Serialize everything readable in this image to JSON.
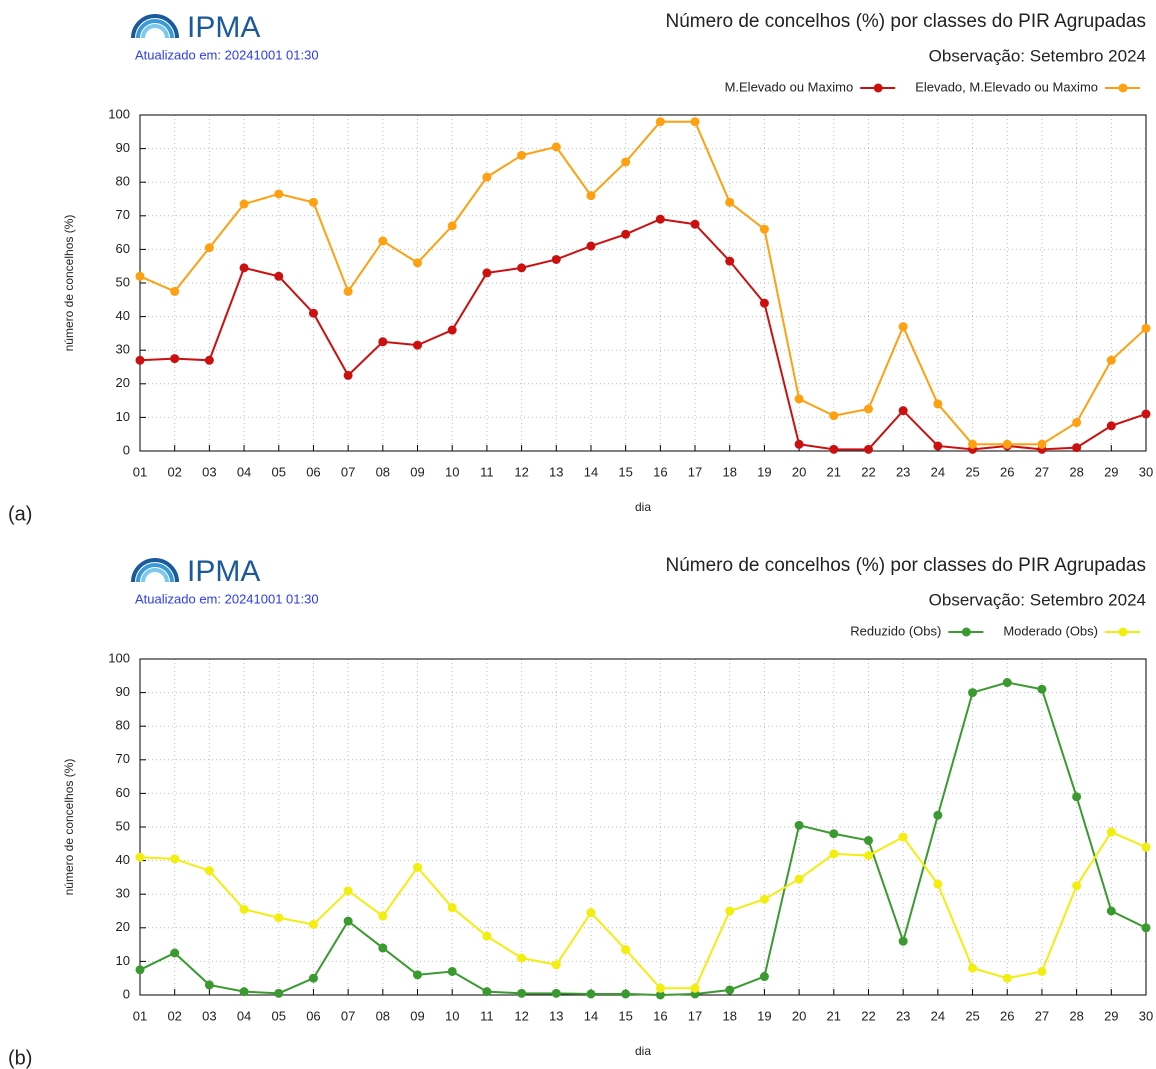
{
  "chart_data": [
    {
      "type": "line",
      "panel_label": "(a)",
      "logo": "IPMA",
      "updated": "Atualizado em: 20241001 01:30",
      "title": "Número de concelhos (%) por classes do PIR Agrupadas",
      "subtitle": "Observação: Setembro 2024",
      "xlabel": "dia",
      "ylabel": "número de concelhos (%)",
      "categories": [
        "01",
        "02",
        "03",
        "04",
        "05",
        "06",
        "07",
        "08",
        "09",
        "10",
        "11",
        "12",
        "13",
        "14",
        "15",
        "16",
        "17",
        "18",
        "19",
        "20",
        "21",
        "22",
        "23",
        "24",
        "25",
        "26",
        "27",
        "28",
        "29",
        "30"
      ],
      "ylim": [
        0,
        100
      ],
      "yticks": [
        0,
        10,
        20,
        30,
        40,
        50,
        60,
        70,
        80,
        90,
        100
      ],
      "grid": true,
      "series": [
        {
          "name": "M.Elevado ou Maximo",
          "color": "#cc1010",
          "values": [
            27,
            27.5,
            27,
            54.5,
            52,
            41,
            22.5,
            32.5,
            31.5,
            36,
            53,
            54.5,
            57,
            61,
            64.5,
            69,
            67.5,
            56.5,
            44,
            2,
            0.5,
            0.5,
            12,
            1.5,
            0.5,
            1.5,
            0.5,
            1,
            7.5,
            11
          ]
        },
        {
          "name": "Elevado, M.Elevado ou Maximo",
          "color": "#ffa010",
          "values": [
            52,
            47.5,
            60.5,
            73.5,
            76.5,
            74,
            47.5,
            62.5,
            56,
            67,
            81.5,
            88,
            90.5,
            76,
            86,
            98,
            98,
            74,
            66,
            15.5,
            10.5,
            12.5,
            37,
            14,
            2,
            2,
            2,
            8.5,
            27,
            36.5
          ]
        }
      ]
    },
    {
      "type": "line",
      "panel_label": "(b)",
      "logo": "IPMA",
      "updated": "Atualizado em: 20241001 01:30",
      "title": "Número de concelhos (%) por classes do PIR Agrupadas",
      "subtitle": "Observação: Setembro 2024",
      "xlabel": "dia",
      "ylabel": "número de concelhos (%)",
      "categories": [
        "01",
        "02",
        "03",
        "04",
        "05",
        "06",
        "07",
        "08",
        "09",
        "10",
        "11",
        "12",
        "13",
        "14",
        "15",
        "16",
        "17",
        "18",
        "19",
        "20",
        "21",
        "22",
        "23",
        "24",
        "25",
        "26",
        "27",
        "28",
        "29",
        "30"
      ],
      "ylim": [
        0,
        100
      ],
      "yticks": [
        0,
        10,
        20,
        30,
        40,
        50,
        60,
        70,
        80,
        90,
        100
      ],
      "grid": true,
      "series": [
        {
          "name": "Reduzido (Obs)",
          "color": "#3a9a30",
          "values": [
            7.5,
            12.5,
            3,
            1,
            0.5,
            5,
            22,
            14,
            6,
            7,
            1,
            0.5,
            0.5,
            0.3,
            0.3,
            0,
            0.3,
            1.5,
            5.5,
            50.5,
            48,
            46,
            16,
            53.5,
            90,
            93,
            91,
            59,
            25,
            20
          ]
        },
        {
          "name": "Moderado (Obs)",
          "color": "#f2ee10",
          "values": [
            41,
            40.5,
            37,
            25.5,
            23,
            21,
            31,
            23.5,
            38,
            26,
            17.5,
            11,
            9,
            24.5,
            13.5,
            2,
            2,
            25,
            28.5,
            34.5,
            42,
            41.5,
            47,
            33,
            8,
            5,
            7,
            32.5,
            48.5,
            44
          ]
        }
      ]
    }
  ]
}
